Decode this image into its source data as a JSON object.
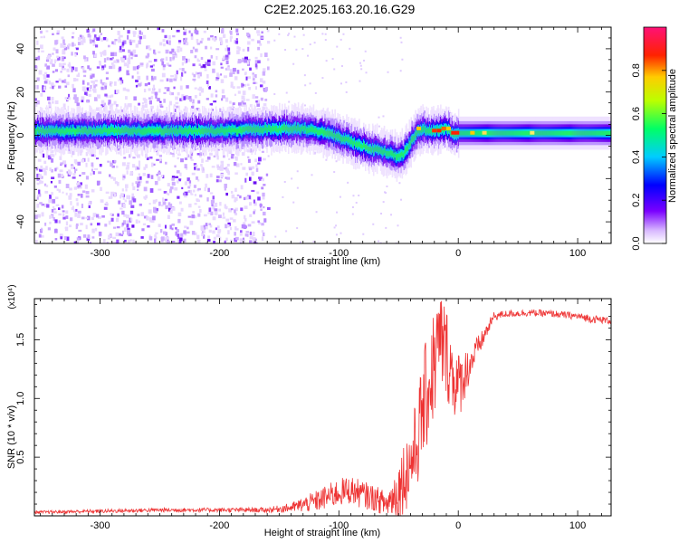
{
  "title": "C2E2.2025.163.20.16.G29",
  "colors": {
    "snr_line": "#ee3333",
    "axis": "#000000"
  },
  "chart_data": [
    {
      "type": "heatmap",
      "xlabel": "Height of straight line (km)",
      "ylabel": "Frequency (Hz)",
      "xlim": [
        -355,
        128
      ],
      "ylim": [
        -50,
        50
      ],
      "xticks": [
        -300,
        -200,
        -100,
        0,
        100
      ],
      "yticks": [
        -40,
        -20,
        0,
        20,
        40
      ],
      "xtick_labels": [
        "-300",
        "-200",
        "-100",
        "0",
        "100"
      ],
      "ytick_labels": [
        "-40",
        "-20",
        "0",
        "20",
        "40"
      ],
      "ridge": {
        "x": [
          -355,
          -300,
          -250,
          -200,
          -160,
          -130,
          -110,
          -90,
          -75,
          -60,
          -50,
          -45,
          -40,
          -35,
          -30,
          -25,
          -20,
          -15,
          -10,
          -5,
          0,
          20,
          60,
          100,
          128
        ],
        "freq": [
          2,
          2,
          2,
          2,
          3,
          3,
          1,
          -3,
          -6,
          -8,
          -10,
          -8,
          -3,
          1,
          3,
          2,
          2,
          3,
          3,
          1,
          1,
          1,
          1,
          1,
          1
        ]
      },
      "colorbar": {
        "label": "Normalized spectral amplitude",
        "range": [
          0,
          1
        ],
        "ticks": [
          0.0,
          0.2,
          0.4,
          0.6,
          0.8
        ],
        "tick_labels": [
          "0.0",
          "0.2",
          "0.4",
          "0.6",
          "0.8"
        ]
      }
    },
    {
      "type": "line",
      "xlabel": "Height of straight line (km)",
      "ylabel": "SNR (10 * v/v)",
      "yscale_label": "(x10⁴)",
      "xlim": [
        -355,
        128
      ],
      "ylim": [
        0,
        18500
      ],
      "xticks": [
        -300,
        -200,
        -100,
        0,
        100
      ],
      "yticks": [
        5000,
        10000,
        15000
      ],
      "xtick_labels": [
        "-300",
        "-200",
        "-100",
        "0",
        "100"
      ],
      "ytick_labels": [
        "0.5",
        "1.0",
        "1.5"
      ],
      "series": [
        {
          "x": [
            -355,
            -300,
            -250,
            -200,
            -160,
            -140,
            -120,
            -100,
            -90,
            -80,
            -70,
            -60,
            -50,
            -45,
            -40,
            -35,
            -30,
            -25,
            -20,
            -15,
            -10,
            -5,
            0,
            10,
            20,
            30,
            40,
            60,
            80,
            100,
            110,
            120,
            128
          ],
          "y": [
            300,
            400,
            500,
            500,
            500,
            700,
            1200,
            2000,
            2200,
            1800,
            1500,
            1000,
            2200,
            3500,
            4500,
            6000,
            9000,
            11000,
            13000,
            15000,
            14000,
            12000,
            11000,
            13000,
            15000,
            17000,
            17200,
            17300,
            17200,
            17000,
            16800,
            16700,
            16600
          ],
          "noise": [
            120,
            160,
            180,
            180,
            220,
            400,
            900,
            1200,
            1200,
            1200,
            1100,
            1100,
            2500,
            3200,
            3500,
            4000,
            4500,
            5000,
            5000,
            4500,
            4000,
            3500,
            3000,
            1500,
            800,
            400,
            300,
            300,
            300,
            300,
            350,
            300,
            300
          ]
        }
      ]
    }
  ]
}
